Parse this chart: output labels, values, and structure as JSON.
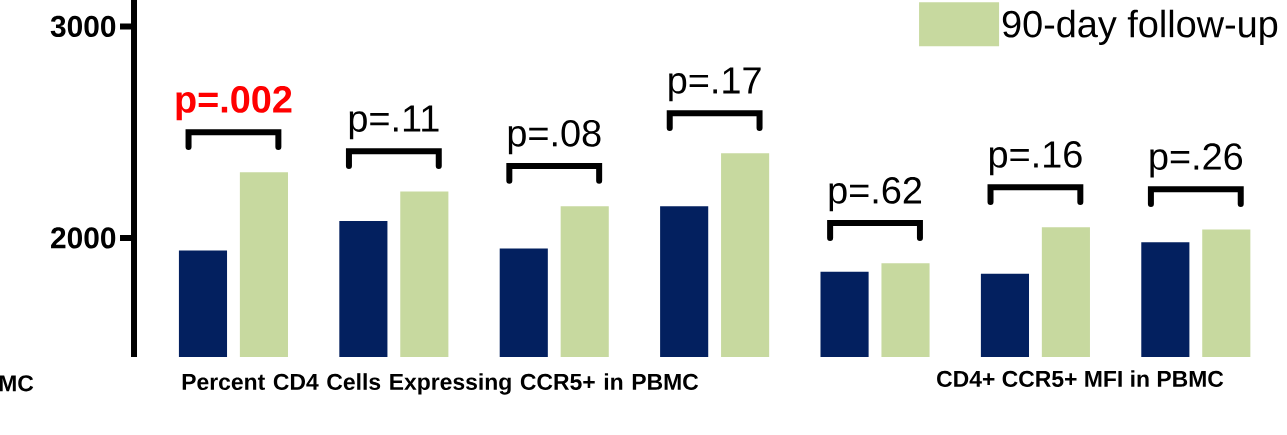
{
  "chart_data": {
    "type": "bar",
    "categories": [
      null,
      null,
      null,
      null,
      null,
      null,
      null
    ],
    "series": [
      {
        "color": "#03205f",
        "values": [
          1940,
          2080,
          1950,
          2150,
          1840,
          1830,
          1980
        ]
      },
      {
        "name": "90-day follow-up",
        "color": "#c7d99f",
        "values": [
          2310,
          2220,
          2150,
          2400,
          1880,
          2050,
          2040
        ]
      }
    ],
    "ylim": [
      1437,
      3125
    ],
    "yticks": [
      2000,
      3000
    ],
    "tick_labels": "y",
    "legend": "top right",
    "annotations": [
      "p=.002",
      "p=.11",
      "p=.08",
      "p=.17",
      "p=.62",
      "p=.16",
      "p=.26",
      "MC",
      "Percent CD4 Cells Expressing CCR5+ in PBMC",
      "CD4+ CCR5+ MFI in PBMC"
    ]
  }
}
